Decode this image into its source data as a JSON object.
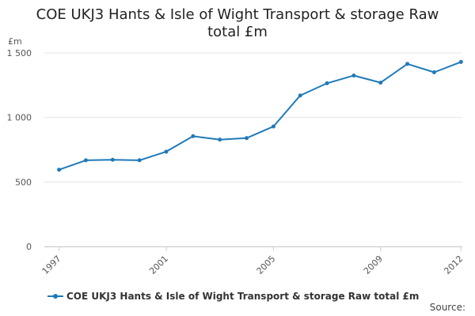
{
  "title": {
    "line1": "COE UKJ3 Hants & Isle of Wight Transport & storage Raw",
    "line2": "total £m"
  },
  "source_label": "Source:",
  "colors": {
    "series": "#1f7ab8",
    "grid": "#e6e6e6",
    "axis_text": "#555555"
  },
  "chart_data": {
    "type": "line",
    "title": "COE UKJ3 Hants & Isle of Wight Transport & storage Raw total £m",
    "ylabel": "£m",
    "xlabel": "",
    "ylim": [
      0,
      1500
    ],
    "yticks": [
      0,
      500,
      1000,
      1500
    ],
    "ytick_labels": [
      "0",
      "500",
      "1 000",
      "1 500"
    ],
    "xticks": [
      1997,
      2001,
      2005,
      2009,
      2012
    ],
    "x": [
      1997,
      1998,
      1999,
      2000,
      2001,
      2002,
      2003,
      2004,
      2005,
      2006,
      2007,
      2008,
      2009,
      2010,
      2011,
      2012
    ],
    "series": [
      {
        "name": "COE UKJ3 Hants & Isle of Wight Transport & storage Raw total £m",
        "values": [
          595,
          668,
          672,
          668,
          735,
          855,
          828,
          840,
          930,
          1170,
          1265,
          1325,
          1270,
          1415,
          1350,
          1430
        ]
      }
    ],
    "grid": true,
    "legend": "bottom"
  }
}
